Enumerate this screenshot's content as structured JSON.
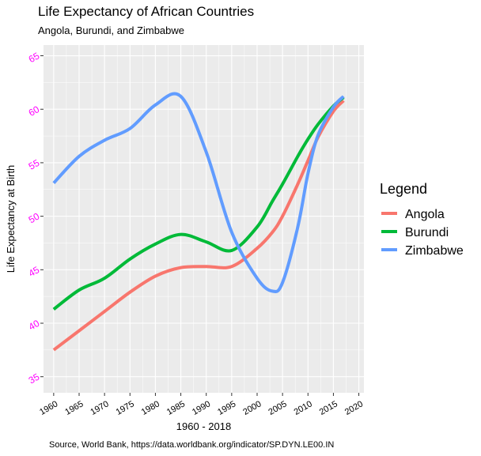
{
  "chart_data": {
    "type": "line",
    "title": "Life Expectancy of African Countries",
    "subtitle": "Angola, Burundi, and Zimbabwe",
    "xlabel": "1960 - 2018",
    "ylabel": "Life Expectancy at Birth",
    "caption": "Source, World Bank,  https://data.worldbank.org/indicator/SP.DYN.LE00.IN",
    "xlim": [
      1958,
      2021
    ],
    "ylim": [
      33.5,
      66
    ],
    "x_ticks": [
      1960,
      1965,
      1970,
      1975,
      1980,
      1985,
      1990,
      1995,
      2000,
      2005,
      2010,
      2015,
      2020
    ],
    "y_ticks": [
      35,
      40,
      45,
      50,
      55,
      60,
      65
    ],
    "grid": true,
    "legend": {
      "title": "Legend",
      "position": "right"
    },
    "colors": {
      "Angola": "#f8766d",
      "Burundi": "#00ba38",
      "Zimbabwe": "#619cff",
      "y_tick_labels": "#ff00ff"
    },
    "x": [
      1960,
      1965,
      1970,
      1975,
      1980,
      1985,
      1990,
      1995,
      2000,
      2003,
      2005,
      2008,
      2010,
      2012,
      2015,
      2017
    ],
    "series": [
      {
        "name": "Angola",
        "values": [
          37.5,
          39.3,
          41.1,
          42.9,
          44.4,
          45.2,
          45.3,
          45.3,
          47.0,
          48.5,
          50.0,
          53.0,
          55.2,
          57.4,
          59.8,
          60.8
        ]
      },
      {
        "name": "Burundi",
        "values": [
          41.3,
          43.1,
          44.2,
          46.0,
          47.4,
          48.3,
          47.6,
          46.8,
          49.0,
          51.4,
          53.0,
          55.6,
          57.2,
          58.6,
          60.3,
          61.1
        ]
      },
      {
        "name": "Zimbabwe",
        "values": [
          53.1,
          55.6,
          57.1,
          58.2,
          60.4,
          61.2,
          56.0,
          48.5,
          44.2,
          43.0,
          43.8,
          49.0,
          54.0,
          57.6,
          60.2,
          61.2
        ]
      }
    ]
  }
}
